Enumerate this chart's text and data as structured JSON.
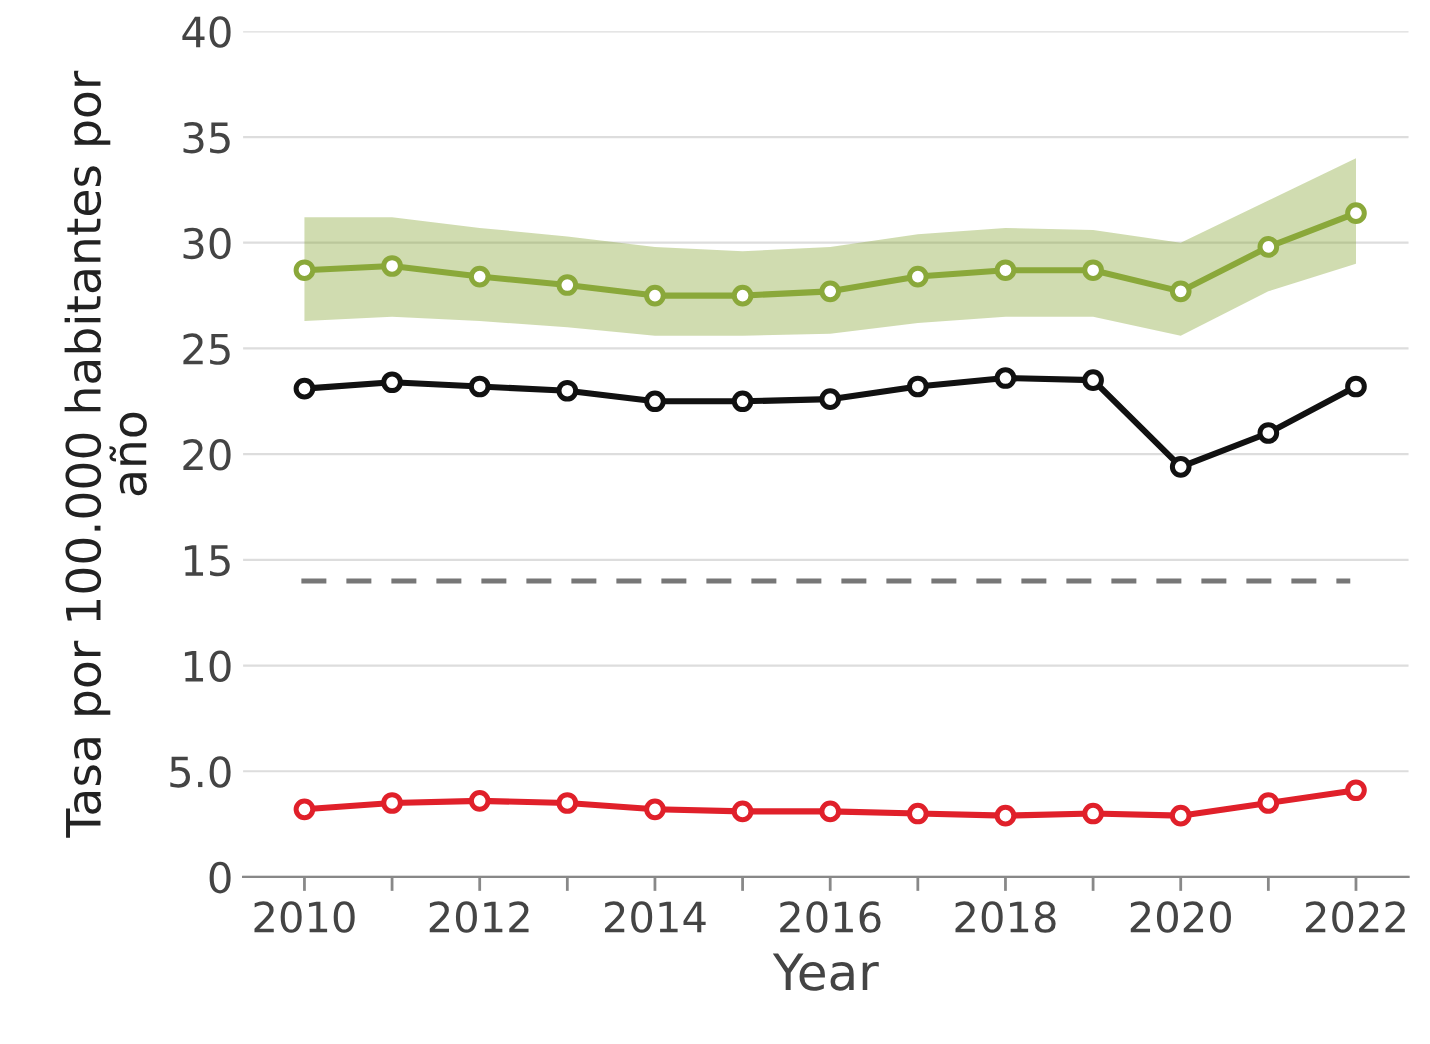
{
  "chart_data": {
    "type": "line",
    "xlabel": "Year",
    "ylabel": "Tasa por 100.000 habitantes por año",
    "x": [
      2010,
      2011,
      2012,
      2013,
      2014,
      2015,
      2016,
      2017,
      2018,
      2019,
      2020,
      2021,
      2022
    ],
    "series": [
      {
        "color": "#8aa83a",
        "values": [
          28.7,
          28.9,
          28.4,
          28.0,
          27.5,
          27.5,
          27.7,
          28.4,
          28.7,
          28.7,
          27.7,
          29.8,
          31.4
        ],
        "lower": [
          26.3,
          26.5,
          26.3,
          26.0,
          25.6,
          25.6,
          25.7,
          26.2,
          26.5,
          26.5,
          25.6,
          27.7,
          29.0
        ],
        "upper": [
          31.2,
          31.2,
          30.7,
          30.3,
          29.8,
          29.6,
          29.8,
          30.4,
          30.7,
          30.6,
          30.0,
          32.0,
          34.0
        ]
      },
      {
        "color": "#111111",
        "values": [
          23.1,
          23.4,
          23.2,
          23.0,
          22.5,
          22.5,
          22.6,
          23.2,
          23.6,
          23.5,
          19.4,
          21.0,
          23.2
        ]
      },
      {
        "color": "#e0202a",
        "values": [
          3.2,
          3.5,
          3.6,
          3.5,
          3.2,
          3.1,
          3.1,
          3.0,
          2.9,
          3.0,
          2.9,
          3.5,
          4.1
        ]
      }
    ],
    "ref_lines": [
      {
        "axis": "y",
        "value": 14,
        "color": "#777777",
        "line_style": "dashed"
      }
    ],
    "xlim": [
      2009.3,
      2022.6
    ],
    "xticks": [
      2010,
      {
        "value": 2011,
        "label": null
      },
      2012,
      {
        "value": 2013,
        "label": null
      },
      2014,
      {
        "value": 2015,
        "label": null
      },
      2016,
      {
        "value": 2017,
        "label": null
      },
      2018,
      {
        "value": 2019,
        "label": null
      },
      2020,
      {
        "value": 2021,
        "label": null
      },
      2022
    ],
    "ylim": [
      0,
      40
    ],
    "yticks": [
      0,
      {
        "value": 5,
        "label": "5.0"
      },
      10,
      15,
      20,
      25,
      30,
      35,
      40
    ],
    "grid": "y",
    "marker": "circle",
    "line_style": "solid"
  }
}
